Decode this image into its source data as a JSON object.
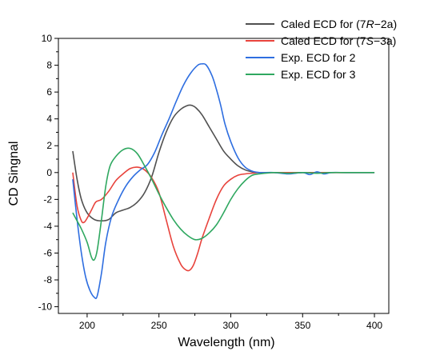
{
  "chart_data": {
    "type": "line",
    "title": "",
    "xlabel": "Wavelength (nm)",
    "ylabel": "CD Singnal",
    "xlim": [
      180,
      410
    ],
    "ylim": [
      -10.5,
      10
    ],
    "x_ticks": [
      {
        "value": 200,
        "label": "200"
      },
      {
        "value": 250,
        "label": "250"
      },
      {
        "value": 300,
        "label": "300"
      },
      {
        "value": 350,
        "label": "350"
      },
      {
        "value": 400,
        "label": "400"
      }
    ],
    "y_ticks": [
      {
        "value": 10,
        "label": "10"
      },
      {
        "value": 8,
        "label": "8"
      },
      {
        "value": 6,
        "label": "6"
      },
      {
        "value": 4,
        "label": "4"
      },
      {
        "value": 2,
        "label": "2"
      },
      {
        "value": 0,
        "label": "0"
      },
      {
        "value": -2,
        "label": "-2"
      },
      {
        "value": -4,
        "label": "-4"
      },
      {
        "value": -6,
        "label": "-6"
      },
      {
        "value": -8,
        "label": "-8"
      },
      {
        "value": -10,
        "label": "-10"
      }
    ],
    "grid": false,
    "legend_position": "top-right",
    "series": [
      {
        "name": "Caled ECD for (7R−2a)",
        "legend_parts": [
          "Caled ECD for (7",
          "R",
          "−2a)"
        ],
        "color": "#505050",
        "x": [
          190,
          193,
          196,
          200,
          205,
          210,
          215,
          220,
          225,
          230,
          235,
          240,
          245,
          250,
          255,
          260,
          265,
          270,
          273,
          276,
          280,
          285,
          290,
          295,
          300,
          305,
          310,
          315,
          320,
          330,
          340,
          350,
          360,
          370,
          380,
          390,
          400
        ],
        "y": [
          1.6,
          -0.5,
          -2.0,
          -3.0,
          -3.5,
          -3.6,
          -3.5,
          -3.0,
          -2.8,
          -2.6,
          -2.2,
          -1.5,
          -0.3,
          1.5,
          3.0,
          4.1,
          4.7,
          5.0,
          5.0,
          4.8,
          4.3,
          3.4,
          2.5,
          1.6,
          1.0,
          0.5,
          0.2,
          0.05,
          0.0,
          0.0,
          -0.05,
          0.0,
          0.0,
          0.0,
          0.0,
          0.0,
          0.0
        ]
      },
      {
        "name": "Caled ECD for (7S−3a)",
        "legend_parts": [
          "Caled ECD for (7",
          "S",
          "−3a)"
        ],
        "color": "#e8433c",
        "x": [
          190,
          193,
          196,
          198,
          200,
          203,
          206,
          210,
          215,
          220,
          225,
          230,
          235,
          240,
          245,
          250,
          255,
          260,
          265,
          268,
          271,
          274,
          277,
          280,
          285,
          290,
          295,
          300,
          305,
          310,
          315,
          320,
          330,
          340,
          350,
          360,
          370,
          380,
          390,
          400
        ],
        "y": [
          0.0,
          -2.5,
          -3.6,
          -3.7,
          -3.4,
          -2.8,
          -2.2,
          -2.0,
          -1.4,
          -0.6,
          -0.1,
          0.3,
          0.4,
          0.2,
          -0.4,
          -1.5,
          -3.5,
          -5.5,
          -6.8,
          -7.2,
          -7.3,
          -6.9,
          -6.0,
          -4.9,
          -3.4,
          -2.0,
          -1.0,
          -0.5,
          -0.2,
          -0.1,
          -0.05,
          0.0,
          0.0,
          0.0,
          0.0,
          0.0,
          0.0,
          0.0,
          0.0,
          0.0
        ]
      },
      {
        "name": "Exp. ECD for 2",
        "color": "#2e6ee0",
        "x": [
          190,
          193,
          196,
          199,
          202,
          205,
          207,
          210,
          213,
          217,
          222,
          227,
          232,
          237,
          242,
          247,
          252,
          257,
          262,
          267,
          272,
          277,
          280,
          283,
          287,
          290,
          293,
          296,
          300,
          305,
          310,
          315,
          320,
          330,
          340,
          350,
          355,
          360,
          365,
          370,
          380,
          390,
          400
        ],
        "y": [
          -0.5,
          -3.5,
          -6.0,
          -7.8,
          -8.8,
          -9.3,
          -9.2,
          -7.5,
          -5.2,
          -3.3,
          -2.0,
          -1.0,
          -0.3,
          0.2,
          0.6,
          1.5,
          2.8,
          4.0,
          5.3,
          6.5,
          7.4,
          8.0,
          8.1,
          8.0,
          7.2,
          6.2,
          5.0,
          3.6,
          2.3,
          1.1,
          0.4,
          0.1,
          0.0,
          0.0,
          -0.1,
          0.0,
          -0.15,
          0.05,
          -0.1,
          0.0,
          0.0,
          0.0,
          0.0
        ]
      },
      {
        "name": "Exp. ECD for 3",
        "color": "#2fa860",
        "x": [
          190,
          193,
          196,
          200,
          203,
          205,
          207,
          210,
          213,
          216,
          220,
          225,
          230,
          235,
          240,
          245,
          250,
          255,
          260,
          265,
          270,
          275,
          280,
          285,
          290,
          295,
          300,
          305,
          310,
          315,
          320,
          330,
          340,
          350,
          360,
          370,
          380,
          390,
          400
        ],
        "y": [
          -3.0,
          -3.6,
          -4.2,
          -5.2,
          -6.3,
          -6.5,
          -5.8,
          -3.5,
          -1.0,
          0.5,
          1.2,
          1.7,
          1.8,
          1.4,
          0.5,
          -0.5,
          -1.6,
          -2.6,
          -3.5,
          -4.2,
          -4.7,
          -5.0,
          -4.9,
          -4.5,
          -3.9,
          -3.0,
          -2.0,
          -1.2,
          -0.6,
          -0.2,
          -0.1,
          0.0,
          -0.05,
          0.0,
          -0.05,
          0.0,
          0.0,
          0.0,
          0.0
        ]
      }
    ]
  }
}
